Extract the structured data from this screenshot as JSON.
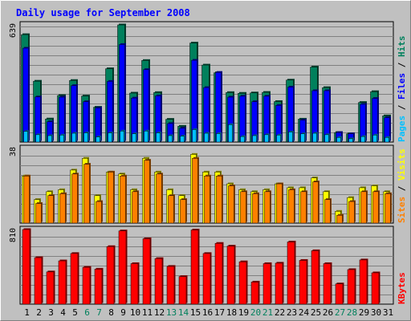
{
  "chart_data": {
    "type": "bar",
    "title": "Daily usage for September 2008",
    "categories": [
      "1",
      "2",
      "3",
      "4",
      "5",
      "6",
      "7",
      "8",
      "9",
      "10",
      "11",
      "12",
      "13",
      "14",
      "15",
      "16",
      "17",
      "18",
      "19",
      "20",
      "21",
      "22",
      "23",
      "24",
      "25",
      "26",
      "27",
      "28",
      "29",
      "30",
      "31"
    ],
    "weekend_days": [
      "6",
      "7",
      "13",
      "14",
      "20",
      "21",
      "27",
      "28"
    ],
    "colors": {
      "hits": "#00805c",
      "files": "#0000ff",
      "pages": "#00c0ff",
      "visits": "#ffff00",
      "sites": "#ff8000",
      "kbytes": "#ff0000",
      "weekday_label": "#000000",
      "weekend_label": "#00805c",
      "title": "#0000ff"
    },
    "panels": [
      {
        "id": "hits",
        "ymax_label": "639",
        "ymax": 639,
        "right_label": [
          {
            "text": "Pages",
            "color": "#00c0ff"
          },
          {
            "text": " / ",
            "color": "#000000"
          },
          {
            "text": "Files",
            "color": "#0000ff"
          },
          {
            "text": " / ",
            "color": "#000000"
          },
          {
            "text": "Hits",
            "color": "#00805c"
          }
        ],
        "series": [
          {
            "name": "Hits",
            "values": [
              586,
              332,
              126,
              254,
              336,
              251,
              190,
              400,
              639,
              267,
              445,
              270,
              124,
              86,
              540,
              420,
              378,
              270,
              266,
              268,
              271,
              221,
              338,
              125,
              409,
              297,
              52,
              45,
              216,
              275,
              143
            ]
          },
          {
            "name": "Files",
            "values": [
              512,
              246,
              111,
              245,
              308,
              220,
              186,
              331,
              532,
              240,
              395,
              252,
              101,
              76,
              446,
              297,
              380,
              245,
              250,
              220,
              250,
              200,
              300,
              120,
              280,
              280,
              52,
              45,
              206,
              238,
              133
            ]
          },
          {
            "name": "Pages",
            "values": [
              58,
              40,
              35,
              38,
              48,
              50,
              28,
              50,
              60,
              45,
              60,
              50,
              35,
              32,
              68,
              48,
              46,
              95,
              30,
              35,
              40,
              38,
              55,
              45,
              48,
              40,
              25,
              18,
              30,
              38,
              25
            ]
          }
        ]
      },
      {
        "id": "visits",
        "ymax_label": "38",
        "ymax": 38,
        "right_label": [
          {
            "text": "Sites",
            "color": "#ff8000"
          },
          {
            "text": " / ",
            "color": "#000000"
          },
          {
            "text": "Visits",
            "color": "#ffff00"
          }
        ],
        "series": [
          {
            "name": "Visits",
            "values": [
              24,
              12,
              16,
              17,
              27,
              33,
              14,
              26,
              25,
              17,
              33,
              26,
              17,
              14,
              35,
              26,
              26,
              20,
              17,
              16,
              17,
              20,
              18,
              18,
              23,
              16,
              6,
              13,
              18,
              19,
              16
            ]
          },
          {
            "name": "Sites",
            "values": [
              24,
              10,
              14,
              15,
              25,
              30,
              11,
              26,
              24,
              16,
              32,
              25,
              14,
              12,
              33,
              24,
              24,
              19,
              16,
              15,
              16,
              20,
              17,
              16,
              21,
              12,
              4,
              11,
              16,
              16,
              15
            ]
          }
        ]
      },
      {
        "id": "kbytes",
        "ymax_label": "810",
        "ymax": 810,
        "right_label": [
          {
            "text": "KBytes",
            "color": "#ff0000"
          }
        ],
        "series": [
          {
            "name": "KBytes",
            "values": [
              810,
              505,
              350,
              470,
              550,
              400,
              380,
              625,
              795,
              440,
              710,
              495,
              410,
              300,
              805,
              550,
              660,
              630,
              460,
              240,
              440,
              445,
              675,
              475,
              580,
              440,
              220,
              375,
              480,
              340,
              0
            ]
          }
        ]
      }
    ]
  }
}
